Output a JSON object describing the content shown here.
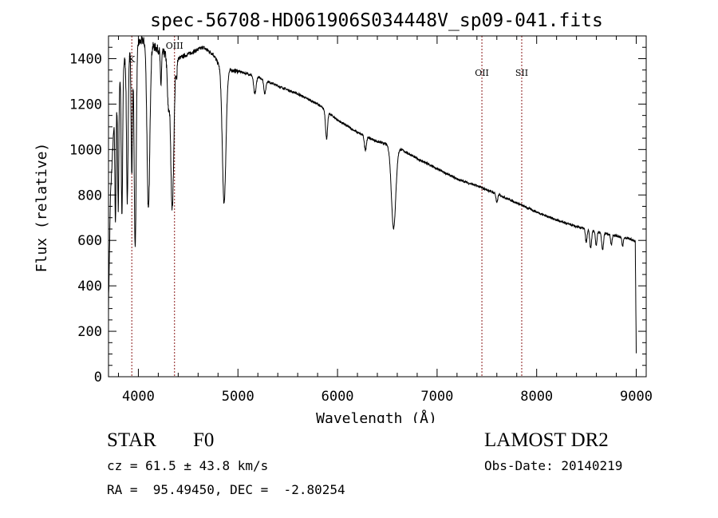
{
  "chart_data": {
    "type": "line",
    "title": "spec-56708-HD061906S034448V_sp09-041.fits",
    "xlabel": "Wavelength (Å)",
    "ylabel": "Flux (relative)",
    "xlim": [
      3700,
      9100
    ],
    "ylim": [
      0,
      1500
    ],
    "xticks": [
      4000,
      5000,
      6000,
      7000,
      8000,
      9000
    ],
    "yticks": [
      0,
      200,
      400,
      600,
      800,
      1000,
      1200,
      1400
    ],
    "grid": false,
    "line_color": "#000000",
    "marker_color": "#8b1a1a",
    "continuum": [
      [
        3700,
        300
      ],
      [
        3720,
        800
      ],
      [
        3760,
        1150
      ],
      [
        3800,
        1300
      ],
      [
        3850,
        1380
      ],
      [
        3900,
        1430
      ],
      [
        3950,
        1460
      ],
      [
        4000,
        1470
      ],
      [
        4050,
        1480
      ],
      [
        4100,
        1470
      ],
      [
        4150,
        1455
      ],
      [
        4200,
        1440
      ],
      [
        4300,
        1410
      ],
      [
        4400,
        1400
      ],
      [
        4500,
        1420
      ],
      [
        4650,
        1450
      ],
      [
        4750,
        1420
      ],
      [
        4800,
        1380
      ],
      [
        4900,
        1350
      ],
      [
        5000,
        1345
      ],
      [
        5200,
        1320
      ],
      [
        5400,
        1280
      ],
      [
        5600,
        1245
      ],
      [
        5800,
        1200
      ],
      [
        6000,
        1130
      ],
      [
        6200,
        1075
      ],
      [
        6400,
        1035
      ],
      [
        6600,
        1010
      ],
      [
        6800,
        960
      ],
      [
        7000,
        915
      ],
      [
        7200,
        870
      ],
      [
        7400,
        840
      ],
      [
        7600,
        805
      ],
      [
        7800,
        765
      ],
      [
        8000,
        725
      ],
      [
        8200,
        690
      ],
      [
        8400,
        660
      ],
      [
        8600,
        640
      ],
      [
        8800,
        620
      ],
      [
        8950,
        605
      ],
      [
        8990,
        595
      ],
      [
        9000,
        100
      ]
    ],
    "absorption_lines": [
      {
        "wavelength": 3770,
        "depth": 500,
        "width": 6
      },
      {
        "wavelength": 3798,
        "depth": 550,
        "width": 6
      },
      {
        "wavelength": 3835,
        "depth": 650,
        "width": 7
      },
      {
        "wavelength": 3889,
        "depth": 650,
        "width": 8
      },
      {
        "wavelength": 3934,
        "depth": 550,
        "width": 7
      },
      {
        "wavelength": 3968,
        "depth": 900,
        "width": 10
      },
      {
        "wavelength": 4101,
        "depth": 740,
        "width": 14
      },
      {
        "wavelength": 4226,
        "depth": 150,
        "width": 6
      },
      {
        "wavelength": 4300,
        "depth": 200,
        "width": 10
      },
      {
        "wavelength": 4340,
        "depth": 660,
        "width": 16
      },
      {
        "wavelength": 4383,
        "depth": 80,
        "width": 5
      },
      {
        "wavelength": 4861,
        "depth": 600,
        "width": 18
      },
      {
        "wavelength": 5170,
        "depth": 80,
        "width": 12
      },
      {
        "wavelength": 5270,
        "depth": 60,
        "width": 10
      },
      {
        "wavelength": 5890,
        "depth": 120,
        "width": 10
      },
      {
        "wavelength": 6280,
        "depth": 60,
        "width": 10
      },
      {
        "wavelength": 6563,
        "depth": 360,
        "width": 22
      },
      {
        "wavelength": 7600,
        "depth": 40,
        "width": 8
      },
      {
        "wavelength": 8498,
        "depth": 60,
        "width": 8
      },
      {
        "wavelength": 8542,
        "depth": 80,
        "width": 9
      },
      {
        "wavelength": 8598,
        "depth": 60,
        "width": 8
      },
      {
        "wavelength": 8662,
        "depth": 75,
        "width": 9
      },
      {
        "wavelength": 8750,
        "depth": 45,
        "width": 7
      },
      {
        "wavelength": 8863,
        "depth": 40,
        "width": 7
      }
    ],
    "line_markers": [
      {
        "label": "K",
        "wavelength": 3934
      },
      {
        "label": "OIII",
        "wavelength": 4363
      },
      {
        "label": "OII",
        "wavelength": 7450
      },
      {
        "label": "SII",
        "wavelength": 7850
      }
    ]
  },
  "info": {
    "class": "STAR",
    "subclass": "F0",
    "survey": "LAMOST DR2",
    "cz": "cz = 61.5 ± 43.8 km/s",
    "obs_date": "Obs-Date: 20140219",
    "coords": "RA =  95.49450, DEC =  -2.80254"
  }
}
